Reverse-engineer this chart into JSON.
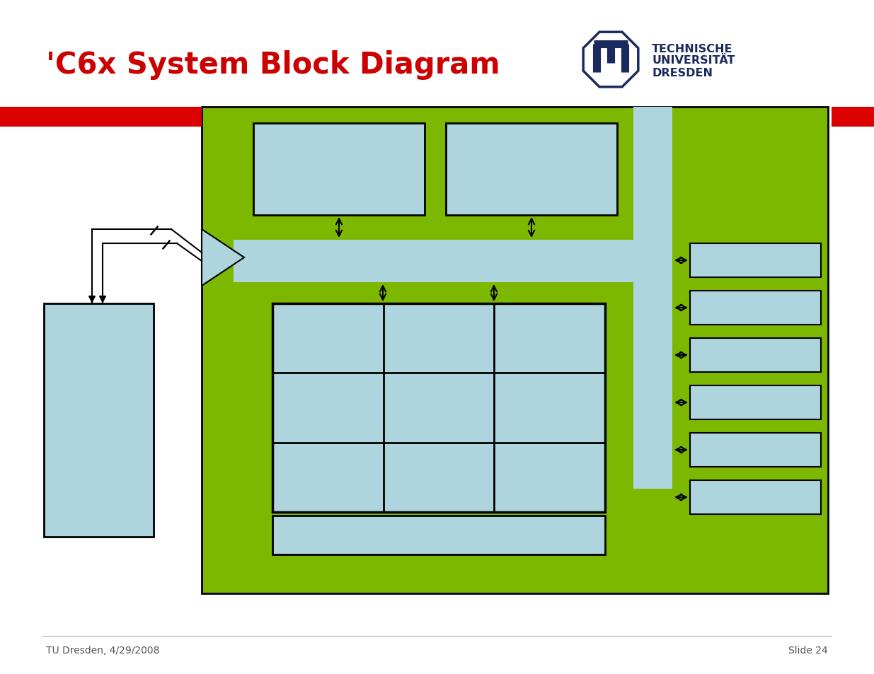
{
  "title": "'C6x System Block Diagram",
  "title_color": "#cc0000",
  "title_fontsize": 30,
  "bg_color": "#ffffff",
  "green_bg": "#7cb800",
  "light_blue": "#aed4de",
  "red_bar_color": "#dd0000",
  "dark_navy": "#1a2a5e",
  "footer_left": "TU Dresden, 4/29/2008",
  "footer_right": "Slide 24",
  "footer_fontsize": 10,
  "fig_w": 12.35,
  "fig_h": 9.54,
  "dpi": 100
}
